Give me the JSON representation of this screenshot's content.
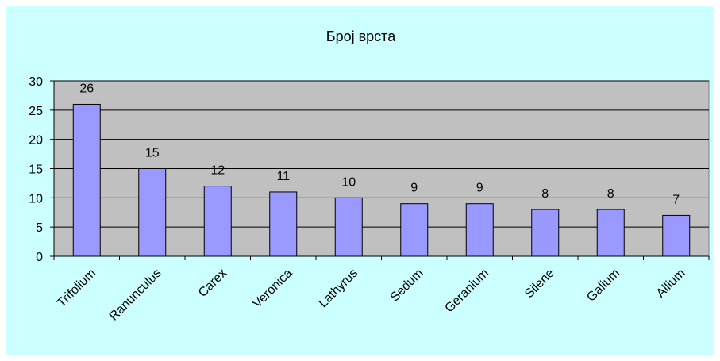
{
  "chart_data": {
    "type": "bar",
    "title": "Број врста",
    "xlabel": "",
    "ylabel": "",
    "categories": [
      "Trifolium",
      "Ranunculus",
      "Carex",
      "Veronica",
      "Lathyrus",
      "Sedum",
      "Geranium",
      "Silene",
      "Galium",
      "Allium"
    ],
    "series": [
      {
        "values": [
          26,
          15,
          12,
          11,
          10,
          9,
          9,
          8,
          8,
          7
        ]
      }
    ],
    "ylim": [
      0,
      30
    ],
    "yticks": [
      0,
      5,
      10,
      15,
      20,
      25,
      30
    ],
    "grid": true,
    "legend": "none",
    "data_labels": true
  },
  "colors": {
    "background": "#ccffff",
    "plot_area": "#c0c0c0",
    "bar": "#9999ff",
    "bar_border": "#000000",
    "grid": "#000000"
  }
}
